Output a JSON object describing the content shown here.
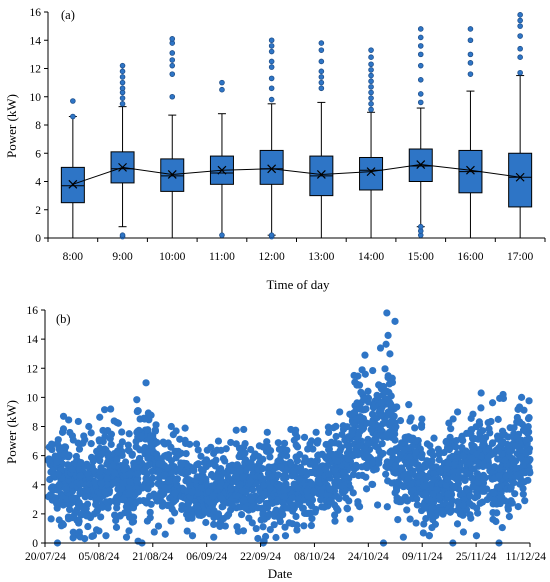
{
  "chart_data": [
    {
      "panel": "(a)",
      "type": "box",
      "xlabel": "Time of day",
      "ylabel": "Power (kW)",
      "ylim": [
        0,
        16
      ],
      "yticks": [
        0,
        2,
        4,
        6,
        8,
        10,
        12,
        14,
        16
      ],
      "grid": false,
      "color": "#2e75c6",
      "categories": [
        "8:00",
        "9:00",
        "10:00",
        "11:00",
        "12:00",
        "13:00",
        "14:00",
        "15:00",
        "16:00",
        "17:00"
      ],
      "boxes": [
        {
          "min": 0.0,
          "q1": 2.5,
          "median": 3.7,
          "mean": 3.8,
          "q3": 5.0,
          "max": 8.6,
          "outliers": [
            8.6,
            9.7
          ]
        },
        {
          "min": 0.8,
          "q1": 3.9,
          "median": 4.9,
          "mean": 5.0,
          "q3": 6.1,
          "max": 9.3,
          "outliers": [
            0.1,
            0.2,
            9.5,
            9.9,
            10.3,
            10.6,
            11.0,
            11.4,
            11.8,
            12.2
          ]
        },
        {
          "min": 0.0,
          "q1": 3.3,
          "median": 4.4,
          "mean": 4.5,
          "q3": 5.6,
          "max": 8.7,
          "outliers": [
            10.0,
            11.6,
            12.2,
            12.6,
            13.1,
            13.8,
            14.1
          ]
        },
        {
          "min": 0.0,
          "q1": 3.8,
          "median": 4.6,
          "mean": 4.8,
          "q3": 5.8,
          "max": 8.8,
          "outliers": [
            0.2,
            10.5,
            11.0
          ]
        },
        {
          "min": 0.2,
          "q1": 3.8,
          "median": 4.9,
          "mean": 4.9,
          "q3": 6.2,
          "max": 9.5,
          "outliers": [
            0.1,
            0.2,
            9.8,
            10.6,
            11.3,
            12.1,
            12.5,
            13.2,
            13.6,
            14.0
          ]
        },
        {
          "min": 0.0,
          "q1": 3.0,
          "median": 4.4,
          "mean": 4.5,
          "q3": 5.8,
          "max": 9.6,
          "outliers": [
            10.6,
            11.0,
            11.4,
            11.8,
            12.5,
            13.3,
            13.8
          ]
        },
        {
          "min": 0.0,
          "q1": 3.4,
          "median": 4.8,
          "mean": 4.7,
          "q3": 5.7,
          "max": 8.9,
          "outliers": [
            9.1,
            9.5,
            9.9,
            10.3,
            10.7,
            11.1,
            11.5,
            11.9,
            12.3,
            12.8,
            13.3
          ]
        },
        {
          "min": 0.8,
          "q1": 4.0,
          "median": 5.1,
          "mean": 5.2,
          "q3": 6.3,
          "max": 9.2,
          "outliers": [
            0.2,
            0.5,
            0.8,
            9.6,
            10.2,
            11.2,
            12.2,
            13.0,
            13.6,
            14.2,
            14.8
          ]
        },
        {
          "min": 0.0,
          "q1": 3.2,
          "median": 4.7,
          "mean": 4.8,
          "q3": 6.2,
          "max": 10.4,
          "outliers": [
            11.6,
            12.4,
            13.0,
            14.0,
            14.8
          ]
        },
        {
          "min": 0.0,
          "q1": 2.2,
          "median": 4.3,
          "mean": 4.3,
          "q3": 6.0,
          "max": 11.5,
          "outliers": [
            11.7,
            12.8,
            13.4,
            14.3,
            15.0,
            15.4,
            15.8
          ]
        }
      ]
    },
    {
      "panel": "(b)",
      "type": "scatter",
      "xlabel": "Date",
      "ylabel": "Power (kW)",
      "ylim": [
        0,
        16
      ],
      "yticks": [
        0,
        2,
        4,
        6,
        8,
        10,
        12,
        14,
        16
      ],
      "xlim": [
        "2024-07-20",
        "2024-12-11"
      ],
      "xtick_labels": [
        "20/07/24",
        "05/08/24",
        "21/08/24",
        "06/09/24",
        "22/09/24",
        "08/10/24",
        "24/10/24",
        "09/11/24",
        "25/11/24",
        "11/12/24"
      ],
      "grid": false,
      "color": "#2e75c6",
      "point_groups": [
        {
          "from": "2024-07-21",
          "to": "2024-07-29",
          "min": 0.0,
          "max": 8.7
        },
        {
          "from": "2024-07-30",
          "to": "2024-08-04",
          "min": 0.3,
          "max": 8.0
        },
        {
          "from": "2024-08-05",
          "to": "2024-08-11",
          "min": 0.5,
          "max": 9.2
        },
        {
          "from": "2024-08-12",
          "to": "2024-08-15",
          "min": 0.4,
          "max": 7.5
        },
        {
          "from": "2024-08-16",
          "to": "2024-08-21",
          "min": 0.0,
          "max": 11.0
        },
        {
          "from": "2024-08-22",
          "to": "2024-08-30",
          "min": 0.6,
          "max": 8.0
        },
        {
          "from": "2024-08-31",
          "to": "2024-09-05",
          "min": 0.5,
          "max": 6.8
        },
        {
          "from": "2024-09-06",
          "to": "2024-09-12",
          "min": 0.4,
          "max": 7.0
        },
        {
          "from": "2024-09-13",
          "to": "2024-09-20",
          "min": 0.8,
          "max": 7.8
        },
        {
          "from": "2024-09-21",
          "to": "2024-09-26",
          "min": 0.0,
          "max": 7.6
        },
        {
          "from": "2024-09-27",
          "to": "2024-10-04",
          "min": 0.5,
          "max": 7.8
        },
        {
          "from": "2024-10-05",
          "to": "2024-10-11",
          "min": 1.2,
          "max": 7.6
        },
        {
          "from": "2024-10-12",
          "to": "2024-10-18",
          "min": 1.5,
          "max": 9.0
        },
        {
          "from": "2024-10-19",
          "to": "2024-10-26",
          "min": 2.5,
          "max": 12.9
        },
        {
          "from": "2024-10-27",
          "to": "2024-10-31",
          "min": 0.0,
          "max": 15.8
        },
        {
          "from": "2024-11-01",
          "to": "2024-11-08",
          "min": 0.4,
          "max": 9.5
        },
        {
          "from": "2024-11-09",
          "to": "2024-11-15",
          "min": 0.5,
          "max": 7.2
        },
        {
          "from": "2024-11-16",
          "to": "2024-11-22",
          "min": 0.0,
          "max": 9.0
        },
        {
          "from": "2024-11-23",
          "to": "2024-11-29",
          "min": 0.5,
          "max": 10.3
        },
        {
          "from": "2024-11-30",
          "to": "2024-12-05",
          "min": 0.0,
          "max": 10.2
        },
        {
          "from": "2024-12-06",
          "to": "2024-12-10",
          "min": 2.5,
          "max": 10.0
        }
      ]
    }
  ]
}
